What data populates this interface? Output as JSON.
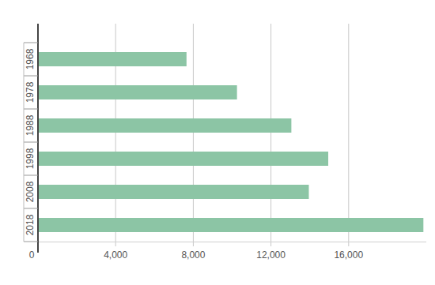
{
  "chart_data": {
    "type": "bar",
    "orientation": "horizontal",
    "categories": [
      "1968",
      "1978",
      "1988",
      "1998",
      "2008",
      "2018"
    ],
    "values": [
      7650,
      10250,
      13050,
      14950,
      13950,
      19850
    ],
    "color": "#8cc5a5",
    "xlim": [
      0,
      20000
    ],
    "xticks": [
      0,
      {
        "value": 4000,
        "label": "4,000"
      },
      {
        "value": 8000,
        "label": "8,000"
      },
      {
        "value": 12000,
        "label": "12,000"
      },
      {
        "value": 16000,
        "label": "16,000"
      }
    ],
    "grid": true
  }
}
